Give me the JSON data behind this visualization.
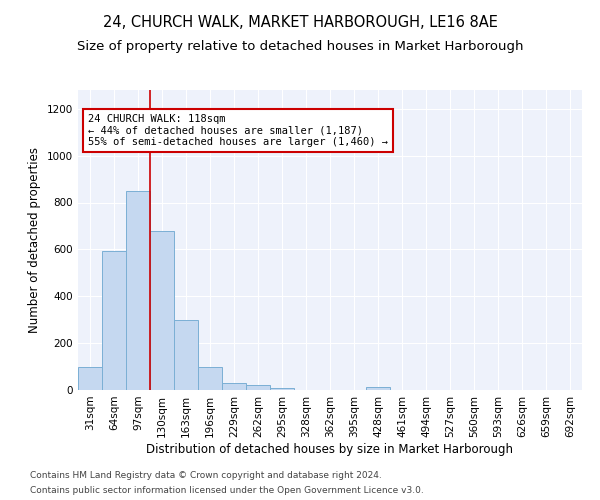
{
  "title": "24, CHURCH WALK, MARKET HARBOROUGH, LE16 8AE",
  "subtitle": "Size of property relative to detached houses in Market Harborough",
  "xlabel": "Distribution of detached houses by size in Market Harborough",
  "ylabel": "Number of detached properties",
  "categories": [
    "31sqm",
    "64sqm",
    "97sqm",
    "130sqm",
    "163sqm",
    "196sqm",
    "229sqm",
    "262sqm",
    "295sqm",
    "328sqm",
    "362sqm",
    "395sqm",
    "428sqm",
    "461sqm",
    "494sqm",
    "527sqm",
    "560sqm",
    "593sqm",
    "626sqm",
    "659sqm",
    "692sqm"
  ],
  "values": [
    100,
    595,
    850,
    680,
    300,
    100,
    32,
    22,
    10,
    0,
    0,
    0,
    12,
    0,
    0,
    0,
    0,
    0,
    0,
    0,
    0
  ],
  "bar_color": "#c5d8f0",
  "bar_edge_color": "#7bafd4",
  "vline_color": "#cc0000",
  "annotation_text": "24 CHURCH WALK: 118sqm\n← 44% of detached houses are smaller (1,187)\n55% of semi-detached houses are larger (1,460) →",
  "annotation_box_color": "#ffffff",
  "annotation_box_edge_color": "#cc0000",
  "ylim": [
    0,
    1280
  ],
  "yticks": [
    0,
    200,
    400,
    600,
    800,
    1000,
    1200
  ],
  "bg_color": "#ffffff",
  "plot_bg_color": "#eef2fb",
  "grid_color": "#ffffff",
  "footer1": "Contains HM Land Registry data © Crown copyright and database right 2024.",
  "footer2": "Contains public sector information licensed under the Open Government Licence v3.0.",
  "title_fontsize": 10.5,
  "subtitle_fontsize": 9.5,
  "xlabel_fontsize": 8.5,
  "ylabel_fontsize": 8.5,
  "tick_fontsize": 7.5,
  "annotation_fontsize": 7.5,
  "footer_fontsize": 6.5,
  "vline_x_index": 2.5
}
